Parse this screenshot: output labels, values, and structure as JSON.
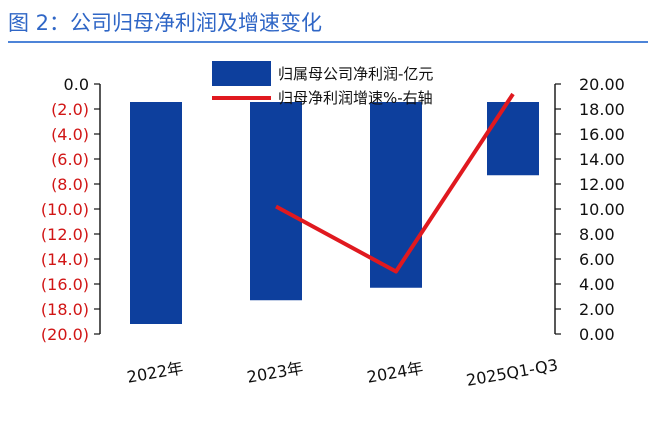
{
  "title": "图 2：公司归母净利润及增速变化",
  "colors": {
    "title": "#2f66c6",
    "rule": "#4d84d8",
    "bar": "#0d3f9d",
    "line": "#e0191f",
    "axis": "#111111",
    "negative_tick": "#d11515",
    "positive_tick": "#111111"
  },
  "chart_data": {
    "type": "bar",
    "categories": [
      "2022年",
      "2023年",
      "2024年",
      "2025Q1-Q3"
    ],
    "series": [
      {
        "name": "归属母公司净利润-亿元",
        "type": "bar",
        "axis": "left",
        "values": [
          -19.2,
          -17.3,
          -16.3,
          -7.3
        ]
      },
      {
        "name": "归母净利润增速%-右轴",
        "type": "line",
        "axis": "right",
        "values": [
          null,
          10.2,
          5.0,
          19.2
        ]
      }
    ],
    "left_axis": {
      "ylim": [
        -20,
        0
      ],
      "ticks": [
        {
          "value": 0,
          "label": "0.0"
        },
        {
          "value": -2,
          "label": "(2.0)"
        },
        {
          "value": -4,
          "label": "(4.0)"
        },
        {
          "value": -6,
          "label": "(6.0)"
        },
        {
          "value": -8,
          "label": "(8.0)"
        },
        {
          "value": -10,
          "label": "(10.0)"
        },
        {
          "value": -12,
          "label": "(12.0)"
        },
        {
          "value": -14,
          "label": "(14.0)"
        },
        {
          "value": -16,
          "label": "(16.0)"
        },
        {
          "value": -18,
          "label": "(18.0)"
        },
        {
          "value": -20,
          "label": "(20.0)"
        }
      ]
    },
    "right_axis": {
      "ylim": [
        0,
        20
      ],
      "ticks": [
        {
          "value": 20,
          "label": "20.00"
        },
        {
          "value": 18,
          "label": "18.00"
        },
        {
          "value": 16,
          "label": "16.00"
        },
        {
          "value": 14,
          "label": "14.00"
        },
        {
          "value": 12,
          "label": "12.00"
        },
        {
          "value": 10,
          "label": "10.00"
        },
        {
          "value": 8,
          "label": "8.00"
        },
        {
          "value": 6,
          "label": "6.00"
        },
        {
          "value": 4,
          "label": "4.00"
        },
        {
          "value": 2,
          "label": "2.00"
        },
        {
          "value": 0,
          "label": "0.00"
        }
      ]
    },
    "grid": false,
    "legend_position": "top-center"
  }
}
